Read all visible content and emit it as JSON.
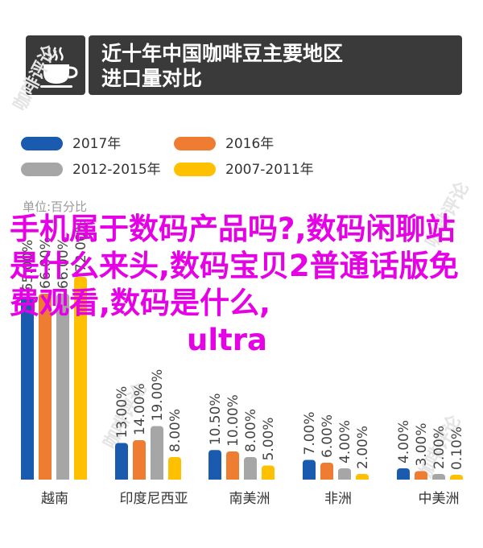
{
  "header": {
    "icon": "coffee-cup-icon",
    "title_line1": "近十年中国咖啡豆主要地区",
    "title_line2": "进口量对比"
  },
  "legend": [
    {
      "label": "2017年",
      "color": "#1a5bb0"
    },
    {
      "label": "2016年",
      "color": "#ee7d31"
    },
    {
      "label": "2012-2015年",
      "color": "#a6a6a6"
    },
    {
      "label": "2007-2011年",
      "color": "#ffc000"
    }
  ],
  "unit_label": "单位:百分比",
  "overlay_text": {
    "line1": "手机属于数码产品吗?,数码闲聊站是什么来头,数码宝贝2普通话版免费观看,数码是什么,",
    "line2": "ultra"
  },
  "watermark_text": "咖啡评论",
  "chart_data": {
    "type": "bar",
    "title": "近十年中国咖啡豆主要地区进口量对比",
    "ylabel": "单位:百分比",
    "categories": [
      "越南",
      "印度尼西亚",
      "南美洲",
      "非洲",
      "中美洲"
    ],
    "series": [
      {
        "name": "2017年",
        "color": "#1a5bb0",
        "values": [
          65.0,
          13.0,
          10.5,
          7.0,
          4.0
        ]
      },
      {
        "name": "2016年",
        "color": "#ee7d31",
        "values": [
          66.0,
          14.0,
          10.0,
          6.0,
          3.0
        ]
      },
      {
        "name": "2012-2015年",
        "color": "#a6a6a6",
        "values": [
          66.0,
          19.0,
          8.0,
          4.0,
          2.0
        ]
      },
      {
        "name": "2007-2011年",
        "color": "#ffc000",
        "values": [
          72.0,
          8.0,
          5.0,
          2.0,
          0.1
        ]
      }
    ],
    "value_labels": [
      [
        "65.00%",
        "13.00%",
        "10.50%",
        "7.00%",
        "4.00%"
      ],
      [
        "66.00%",
        "14.00%",
        "10.00%",
        "6.00%",
        "3.00%"
      ],
      [
        "66.00%",
        "19.00%",
        "8.00%",
        "4.00%",
        "2.00%"
      ],
      [
        "72.00%",
        "8.00%",
        "5.00%",
        "2.00%",
        "0.10%"
      ]
    ],
    "ylim": [
      0,
      100
    ],
    "grid": false,
    "legend_position": "top-left"
  }
}
